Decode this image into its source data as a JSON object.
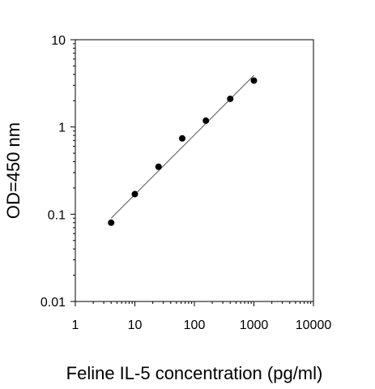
{
  "chart_data": {
    "type": "scatter",
    "title": "",
    "xlabel": "Feline IL-5 concentration (pg/ml)",
    "ylabel": "OD=450 nm",
    "xscale": "log",
    "yscale": "log",
    "xlim": [
      1,
      10000
    ],
    "ylim": [
      0.01,
      10
    ],
    "xticks": [
      "1",
      "10",
      "100",
      "1000",
      "10000"
    ],
    "yticks": [
      "0.01",
      "0.1",
      "1",
      "10"
    ],
    "grid": false,
    "legend": "none",
    "series": [
      {
        "x": [
          4,
          10,
          25,
          62.5,
          156,
          400,
          1000
        ],
        "y": [
          0.08,
          0.17,
          0.35,
          0.74,
          1.18,
          2.1,
          3.4
        ]
      }
    ],
    "fit_line": {
      "x": [
        4,
        1000
      ],
      "y": [
        0.09,
        3.9
      ]
    },
    "colors": {
      "points": "#000000",
      "fit": "#555555",
      "axes": "#000000"
    }
  }
}
